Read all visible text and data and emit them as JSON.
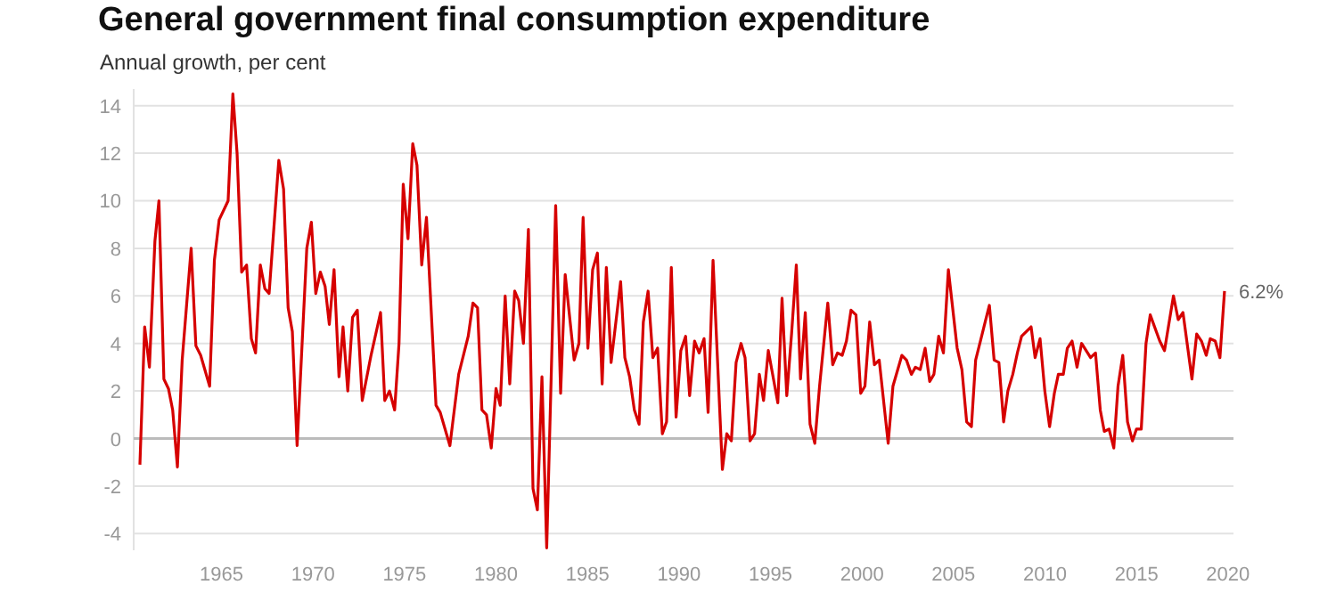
{
  "chart_data": {
    "type": "line",
    "title": "General government final consumption expenditure",
    "subtitle": "Annual growth, per cent",
    "x": [
      1960.54,
      1960.8,
      1961.06,
      1961.36,
      1961.58,
      1961.85,
      1962.1,
      1962.33,
      1962.59,
      1962.85,
      1963.34,
      1963.6,
      1963.86,
      1964.35,
      1964.61,
      1964.87,
      1965.36,
      1965.62,
      1965.85,
      1966.1,
      1966.37,
      1966.63,
      1966.86,
      1967.12,
      1967.37,
      1967.6,
      1968.13,
      1968.39,
      1968.64,
      1968.87,
      1969.13,
      1969.66,
      1969.91,
      1970.15,
      1970.4,
      1970.66,
      1970.89,
      1971.15,
      1971.42,
      1971.64,
      1971.9,
      1972.16,
      1972.42,
      1972.69,
      1973.17,
      1973.69,
      1973.92,
      1974.18,
      1974.46,
      1974.7,
      1974.93,
      1975.19,
      1975.45,
      1975.68,
      1975.94,
      1976.2,
      1976.72,
      1976.95,
      1977.48,
      1977.96,
      1978.48,
      1978.74,
      1978.99,
      1979.23,
      1979.48,
      1979.74,
      1980.0,
      1980.23,
      1980.5,
      1980.75,
      1981.02,
      1981.24,
      1981.5,
      1981.77,
      1982.02,
      1982.26,
      1982.51,
      1982.77,
      1983.26,
      1983.53,
      1983.78,
      1984.27,
      1984.53,
      1984.76,
      1985.02,
      1985.28,
      1985.54,
      1985.8,
      1986.03,
      1986.29,
      1986.81,
      1987.04,
      1987.3,
      1987.56,
      1987.82,
      1988.05,
      1988.31,
      1988.57,
      1988.83,
      1989.09,
      1989.32,
      1989.58,
      1989.84,
      1990.1,
      1990.36,
      1990.58,
      1990.85,
      1991.1,
      1991.37,
      1991.59,
      1991.86,
      1992.37,
      1992.61,
      1992.86,
      1993.12,
      1993.39,
      1993.61,
      1993.88,
      1994.13,
      1994.39,
      1994.62,
      1994.88,
      1995.4,
      1995.63,
      1995.89,
      1996.15,
      1996.41,
      1996.64,
      1996.9,
      1997.16,
      1997.42,
      1997.68,
      1998.13,
      1998.4,
      1998.66,
      1998.92,
      1999.15,
      1999.4,
      1999.67,
      1999.93,
      2000.16,
      2000.42,
      2000.68,
      2000.94,
      2001.43,
      2001.69,
      2002.18,
      2002.43,
      2002.7,
      2002.92,
      2003.18,
      2003.45,
      2003.7,
      2003.93,
      2004.19,
      2004.45,
      2004.72,
      2005.2,
      2005.46,
      2005.72,
      2005.98,
      2006.21,
      2006.47,
      2006.73,
      2006.96,
      2007.22,
      2007.48,
      2007.74,
      2007.97,
      2008.24,
      2008.49,
      2008.72,
      2009.24,
      2009.46,
      2009.73,
      2009.99,
      2010.25,
      2010.51,
      2010.73,
      2011.0,
      2011.22,
      2011.48,
      2011.75,
      2012.0,
      2012.49,
      2012.76,
      2013.02,
      2013.24,
      2013.5,
      2013.76,
      2013.99,
      2014.25,
      2014.51,
      2014.78,
      2015.0,
      2015.26,
      2015.52,
      2015.75,
      2016.27,
      2016.53,
      2017.02,
      2017.28,
      2017.54,
      2018.03,
      2018.29,
      2018.55,
      2018.81,
      2019.03,
      2019.3,
      2019.56,
      2019.81
    ],
    "series": [
      {
        "color": "#d60000",
        "values": [
          -1.1,
          4.7,
          3.0,
          8.3,
          10.0,
          2.5,
          2.1,
          1.2,
          -1.2,
          3.3,
          8.0,
          3.9,
          3.5,
          2.2,
          7.5,
          9.2,
          10.0,
          14.5,
          12.0,
          7.0,
          7.3,
          4.2,
          3.6,
          7.3,
          6.3,
          6.1,
          11.7,
          10.5,
          5.5,
          4.5,
          -0.3,
          8.0,
          9.1,
          6.1,
          7.0,
          6.4,
          4.8,
          7.1,
          2.6,
          4.7,
          2.0,
          5.1,
          5.4,
          1.6,
          3.5,
          5.3,
          1.6,
          2.0,
          1.2,
          4.0,
          10.7,
          8.4,
          12.4,
          11.5,
          7.3,
          9.3,
          1.4,
          1.1,
          -0.3,
          2.7,
          4.3,
          5.7,
          5.5,
          1.2,
          1.0,
          -0.4,
          2.1,
          1.4,
          6.0,
          2.3,
          6.2,
          5.8,
          4.0,
          8.8,
          -2.1,
          -3.0,
          2.6,
          -4.6,
          9.8,
          1.9,
          6.9,
          3.3,
          4.0,
          9.3,
          3.8,
          7.1,
          7.8,
          2.3,
          7.2,
          3.2,
          6.6,
          3.4,
          2.6,
          1.2,
          0.6,
          4.9,
          6.2,
          3.4,
          3.8,
          0.2,
          0.7,
          7.2,
          0.9,
          3.7,
          4.3,
          1.8,
          4.1,
          3.6,
          4.2,
          1.1,
          7.5,
          -1.3,
          0.2,
          -0.1,
          3.2,
          4.0,
          3.4,
          -0.1,
          0.2,
          2.7,
          1.6,
          3.7,
          1.5,
          5.9,
          1.8,
          4.4,
          7.3,
          2.5,
          5.3,
          0.6,
          -0.2,
          2.2,
          5.7,
          3.1,
          3.6,
          3.5,
          4.1,
          5.4,
          5.2,
          1.9,
          2.2,
          4.9,
          3.1,
          3.3,
          -0.2,
          2.2,
          3.5,
          3.3,
          2.7,
          3.0,
          2.9,
          3.8,
          2.4,
          2.7,
          4.3,
          3.6,
          7.1,
          3.8,
          2.9,
          0.7,
          0.5,
          3.3,
          4.1,
          4.9,
          5.6,
          3.3,
          3.2,
          0.7,
          2.0,
          2.7,
          3.6,
          4.3,
          4.7,
          3.4,
          4.2,
          2.0,
          0.5,
          1.9,
          2.7,
          2.7,
          3.8,
          4.1,
          3.0,
          4.0,
          3.4,
          3.6,
          1.2,
          0.3,
          0.4,
          -0.4,
          2.2,
          3.5,
          0.7,
          -0.1,
          0.4,
          0.4,
          4.0,
          5.2,
          4.1,
          3.7,
          6.0,
          5.0,
          5.3,
          2.5,
          4.4,
          4.1,
          3.5,
          4.2,
          4.1,
          3.4,
          6.2
        ]
      }
    ],
    "xlim": [
      1960.2,
      2020.3
    ],
    "ylim": [
      -4.7,
      14.7
    ],
    "xticks": [
      1965,
      1970,
      1975,
      1980,
      1985,
      1990,
      1995,
      2000,
      2005,
      2010,
      2015,
      2020
    ],
    "yticks": [
      -4,
      -2,
      0,
      2,
      4,
      6,
      8,
      10,
      12,
      14
    ],
    "grid": "y",
    "marker": "none",
    "line_style": "solid",
    "ref_lines": [
      {
        "axis": "y",
        "value": 0,
        "color": "#bbbbbb"
      }
    ],
    "annotations": [
      {
        "text": "6.2%",
        "x": 2019.81,
        "y": 6.2
      }
    ]
  }
}
